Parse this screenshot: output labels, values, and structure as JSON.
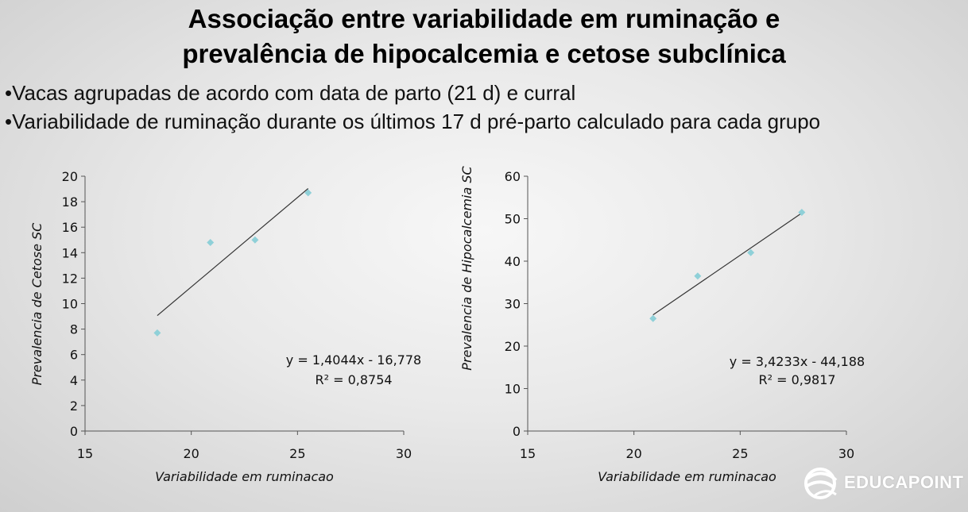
{
  "title": {
    "line1": "Associação entre variabilidade em ruminação e",
    "line2": "prevalência de hipocalcemia e cetose subclínica"
  },
  "bullets": [
    "•Vacas agrupadas de acordo com data de parto (21 d) e curral",
    "•Variabilidade de ruminação durante os últimos 17 d pré-parto calculado para cada grupo"
  ],
  "logo": {
    "text": "EDUCAPOINT",
    "icon": "globe-swoosh-icon"
  },
  "colors": {
    "point": "#8fd0d8",
    "line": "#333333",
    "axis": "#555555"
  },
  "chart_data": [
    {
      "type": "scatter",
      "title": "",
      "xlabel": "Variabilidade em ruminacao",
      "ylabel": "Prevalencia de Cetose SC",
      "xlim": [
        15,
        30
      ],
      "ylim": [
        0,
        20
      ],
      "xticks": [
        15,
        20,
        25,
        30
      ],
      "yticks": [
        0,
        2,
        4,
        6,
        8,
        10,
        12,
        14,
        16,
        18,
        20
      ],
      "series": [
        {
          "x": [
            18.4,
            20.9,
            23.0,
            25.5
          ],
          "y": [
            7.7,
            14.8,
            15.0,
            18.7
          ]
        }
      ],
      "trendline": {
        "slope": 1.4044,
        "intercept": -16.778,
        "x_range": [
          18.4,
          25.5
        ]
      },
      "equation": "y = 1,4044x - 16,778",
      "r2": "R² = 0,8754",
      "grid": false
    },
    {
      "type": "scatter",
      "title": "",
      "xlabel": "Variabilidade em ruminacao",
      "ylabel": "Prevalencia de Hipocalcemia SC",
      "xlim": [
        15,
        30
      ],
      "ylim": [
        0,
        60
      ],
      "xticks": [
        15,
        20,
        25,
        30
      ],
      "yticks": [
        0,
        10,
        20,
        30,
        40,
        50,
        60
      ],
      "series": [
        {
          "x": [
            20.9,
            23.0,
            25.5,
            27.9
          ],
          "y": [
            26.5,
            36.5,
            42.0,
            51.5
          ]
        }
      ],
      "trendline": {
        "slope": 3.4233,
        "intercept": -44.188,
        "x_range": [
          20.9,
          27.9
        ]
      },
      "equation": "y = 3,4233x - 44,188",
      "r2": "R² = 0,9817",
      "grid": false
    }
  ]
}
